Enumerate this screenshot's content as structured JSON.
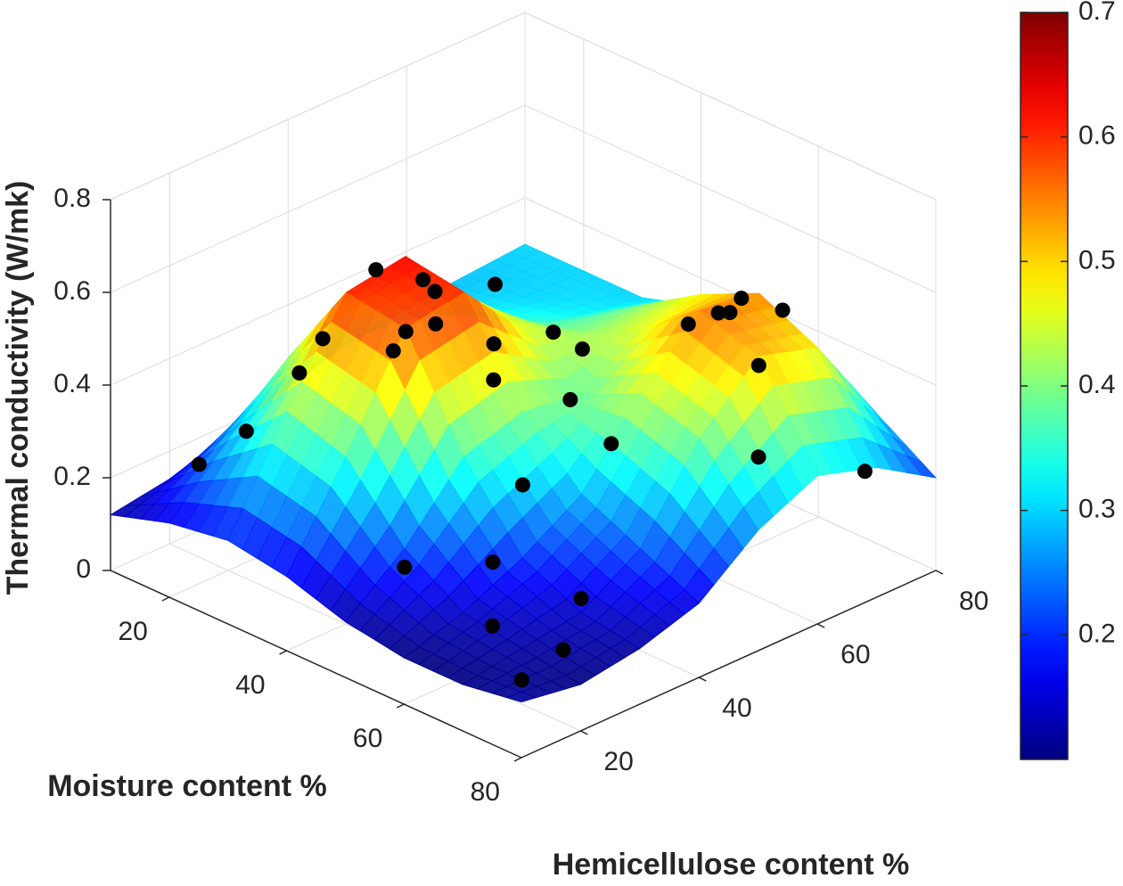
{
  "chart_data": {
    "type": "surface3d",
    "xlabel": "Moisture content %",
    "ylabel": "Hemicellulose content %",
    "zlabel": "Thermal conductivity (W/mk)",
    "xlim": [
      10,
      80
    ],
    "ylim": [
      10,
      80
    ],
    "zlim": [
      0,
      0.8
    ],
    "xticks": [
      20,
      40,
      60,
      80
    ],
    "yticks": [
      20,
      40,
      60,
      80
    ],
    "zticks": [
      0,
      0.2,
      0.4,
      0.6,
      0.8
    ],
    "grid": true,
    "colormap": "jet",
    "clim": [
      0.1,
      0.7
    ],
    "cticks": [
      0.2,
      0.3,
      0.4,
      0.5,
      0.6,
      0.7
    ],
    "surface": {
      "x": [
        10,
        20,
        30,
        40,
        50,
        60,
        70,
        80
      ],
      "y": [
        10,
        20,
        30,
        40,
        50,
        60,
        70,
        80
      ],
      "z": [
        [
          0.12,
          0.14,
          0.18,
          0.22,
          0.26,
          0.28,
          0.29,
          0.3
        ],
        [
          0.16,
          0.28,
          0.4,
          0.44,
          0.38,
          0.32,
          0.3,
          0.3
        ],
        [
          0.18,
          0.4,
          0.6,
          0.62,
          0.48,
          0.36,
          0.32,
          0.3
        ],
        [
          0.16,
          0.36,
          0.58,
          0.6,
          0.46,
          0.4,
          0.4,
          0.34
        ],
        [
          0.12,
          0.22,
          0.36,
          0.4,
          0.38,
          0.46,
          0.48,
          0.38
        ],
        [
          0.1,
          0.14,
          0.2,
          0.28,
          0.44,
          0.56,
          0.54,
          0.36
        ],
        [
          0.1,
          0.12,
          0.14,
          0.22,
          0.4,
          0.52,
          0.48,
          0.28
        ],
        [
          0.12,
          0.1,
          0.12,
          0.16,
          0.26,
          0.32,
          0.28,
          0.2
        ]
      ]
    },
    "points": {
      "color": "#000000",
      "x": [
        15,
        18,
        22,
        28,
        30,
        35,
        33,
        38,
        40,
        45,
        25,
        20,
        45,
        50,
        55,
        60,
        65,
        70,
        75,
        72,
        58,
        62,
        66,
        70,
        55,
        48,
        75,
        60,
        35,
        15,
        78,
        50
      ],
      "y": [
        20,
        25,
        30,
        28,
        35,
        38,
        42,
        30,
        45,
        40,
        45,
        55,
        55,
        48,
        35,
        25,
        20,
        30,
        15,
        25,
        60,
        65,
        68,
        60,
        70,
        75,
        55,
        45,
        60,
        70,
        70,
        20
      ],
      "z": [
        0.2,
        0.26,
        0.38,
        0.5,
        0.62,
        0.61,
        0.55,
        0.52,
        0.46,
        0.44,
        0.4,
        0.33,
        0.42,
        0.38,
        0.3,
        0.22,
        0.14,
        0.17,
        0.11,
        0.1,
        0.52,
        0.57,
        0.55,
        0.5,
        0.47,
        0.4,
        0.36,
        0.36,
        0.37,
        0.3,
        0.26,
        0.18
      ]
    }
  }
}
